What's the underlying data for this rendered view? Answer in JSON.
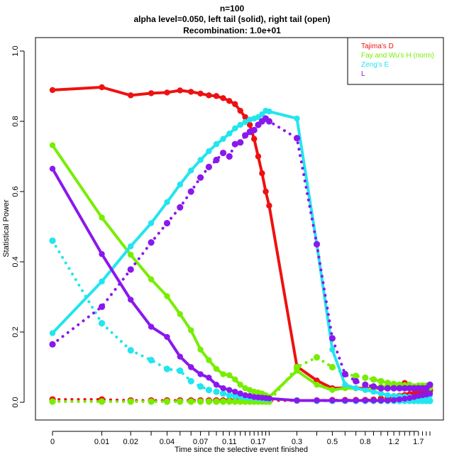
{
  "chart_data": {
    "type": "line",
    "title_lines": [
      "n=100",
      "alpha level=0.050, left tail (solid), right tail (open)",
      "Recombination: 1.0e+01"
    ],
    "xlabel": "Time since the selective event finished",
    "ylabel": "Statistical Power",
    "ylim": [
      0,
      1
    ],
    "yticks": [
      "0.0",
      "0.2",
      "0.4",
      "0.6",
      "0.8",
      "1.0"
    ],
    "xscale": "log(x+0.01)",
    "xticks": [
      {
        "value": 0,
        "label": "0"
      },
      {
        "value": 0.01,
        "label": "0.01"
      },
      {
        "value": 0.02,
        "label": "0.02"
      },
      {
        "value": 0.04,
        "label": "0.04"
      },
      {
        "value": 0.07,
        "label": "0.07"
      },
      {
        "value": 0.11,
        "label": "0.11"
      },
      {
        "value": 0.17,
        "label": "0.17"
      },
      {
        "value": 0.3,
        "label": "0.3"
      },
      {
        "value": 0.5,
        "label": "0.5"
      },
      {
        "value": 0.8,
        "label": "0.8"
      },
      {
        "value": 1.2,
        "label": "1.2"
      },
      {
        "value": 1.7,
        "label": "1.7"
      }
    ],
    "x": [
      0,
      0.01,
      0.02,
      0.03,
      0.04,
      0.05,
      0.06,
      0.07,
      0.08,
      0.09,
      0.1,
      0.11,
      0.12,
      0.13,
      0.14,
      0.15,
      0.16,
      0.17,
      0.18,
      0.19,
      0.2,
      0.3,
      0.4,
      0.5,
      0.6,
      0.7,
      0.8,
      0.9,
      1.0,
      1.1,
      1.2,
      1.3,
      1.4,
      1.5,
      1.6,
      1.7,
      1.8,
      1.9,
      2.0
    ],
    "series": [
      {
        "name": "Tajima's D",
        "color": "#ee1111",
        "left": [
          0.889,
          0.897,
          0.874,
          0.88,
          0.882,
          0.888,
          0.884,
          0.879,
          0.874,
          0.872,
          0.866,
          0.858,
          0.849,
          0.83,
          0.812,
          0.79,
          0.75,
          0.7,
          0.652,
          0.6,
          0.56,
          0.102,
          0.062,
          0.04,
          0.041,
          0.04,
          0.04,
          0.04,
          0.04,
          0.039,
          0.041,
          0.042,
          0.055,
          0.05,
          0.045,
          0.04,
          0.038,
          0.036,
          0.034
        ],
        "right": [
          0.008,
          0.008,
          0.005,
          0.005,
          0.005,
          0.005,
          0.005,
          0.005,
          0.005,
          0.005,
          0.005,
          0.005,
          0.005,
          0.005,
          0.005,
          0.005,
          0.005,
          0.005,
          0.005,
          0.005,
          0.005,
          0.005,
          0.005,
          0.006,
          0.006,
          0.006,
          0.006,
          0.007,
          0.01,
          0.012,
          0.015,
          0.018,
          0.02,
          0.022,
          0.025,
          0.028,
          0.03,
          0.032,
          0.034
        ]
      },
      {
        "name": "Fay and Wu's H (norm)",
        "color": "#77ee00",
        "left": [
          0.732,
          0.526,
          0.42,
          0.35,
          0.302,
          0.251,
          0.205,
          0.15,
          0.12,
          0.095,
          0.08,
          0.077,
          0.065,
          0.05,
          0.04,
          0.035,
          0.03,
          0.028,
          0.025,
          0.02,
          0.015,
          0.09,
          0.05,
          0.035,
          0.04,
          0.04,
          0.035,
          0.04,
          0.045,
          0.045,
          0.045,
          0.045,
          0.048,
          0.05,
          0.045,
          0.048,
          0.048,
          0.048,
          0.048
        ],
        "right": [
          0.002,
          0.002,
          0.002,
          0.002,
          0.002,
          0.002,
          0.002,
          0.002,
          0.002,
          0.002,
          0.002,
          0.002,
          0.002,
          0.002,
          0.002,
          0.002,
          0.002,
          0.002,
          0.002,
          0.002,
          0.002,
          0.1,
          0.128,
          0.1,
          0.08,
          0.075,
          0.07,
          0.065,
          0.06,
          0.055,
          0.052,
          0.05,
          0.048,
          0.046,
          0.045,
          0.044,
          0.043,
          0.042,
          0.042
        ]
      },
      {
        "name": "Zeng's E",
        "color": "#22e5ee",
        "left": [
          0.197,
          0.344,
          0.444,
          0.51,
          0.57,
          0.62,
          0.66,
          0.69,
          0.715,
          0.735,
          0.75,
          0.765,
          0.78,
          0.79,
          0.798,
          0.805,
          0.808,
          0.812,
          0.82,
          0.83,
          0.828,
          0.808,
          0.45,
          0.15,
          0.05,
          0.04,
          0.035,
          0.03,
          0.025,
          0.02,
          0.018,
          0.017,
          0.016,
          0.015,
          0.014,
          0.013,
          0.013,
          0.015,
          0.02
        ],
        "right": [
          0.46,
          0.225,
          0.148,
          0.12,
          0.095,
          0.09,
          0.06,
          0.045,
          0.035,
          0.03,
          0.025,
          0.02,
          0.018,
          0.016,
          0.015,
          0.014,
          0.013,
          0.012,
          0.011,
          0.01,
          0.01,
          0.005,
          0.004,
          0.004,
          0.004,
          0.004,
          0.004,
          0.004,
          0.004,
          0.004,
          0.004,
          0.004,
          0.004,
          0.004,
          0.004,
          0.004,
          0.004,
          0.004,
          0.004
        ]
      },
      {
        "name": "L",
        "color": "#8a18ee",
        "left": [
          0.665,
          0.422,
          0.292,
          0.215,
          0.186,
          0.13,
          0.1,
          0.08,
          0.07,
          0.05,
          0.04,
          0.035,
          0.03,
          0.025,
          0.02,
          0.018,
          0.015,
          0.014,
          0.013,
          0.012,
          0.011,
          0.005,
          0.005,
          0.005,
          0.005,
          0.005,
          0.005,
          0.005,
          0.005,
          0.005,
          0.006,
          0.008,
          0.01,
          0.012,
          0.015,
          0.018,
          0.02,
          0.022,
          0.025
        ],
        "right": [
          0.165,
          0.272,
          0.378,
          0.455,
          0.51,
          0.555,
          0.6,
          0.64,
          0.67,
          0.69,
          0.71,
          0.7,
          0.735,
          0.74,
          0.76,
          0.77,
          0.775,
          0.79,
          0.8,
          0.808,
          0.8,
          0.752,
          0.45,
          0.182,
          0.08,
          0.06,
          0.05,
          0.045,
          0.04,
          0.04,
          0.04,
          0.04,
          0.04,
          0.04,
          0.04,
          0.04,
          0.04,
          0.04,
          0.05
        ]
      }
    ],
    "legend": [
      "Tajima's D",
      "Fay and Wu's H (norm)",
      "Zeng's E",
      "L"
    ]
  }
}
